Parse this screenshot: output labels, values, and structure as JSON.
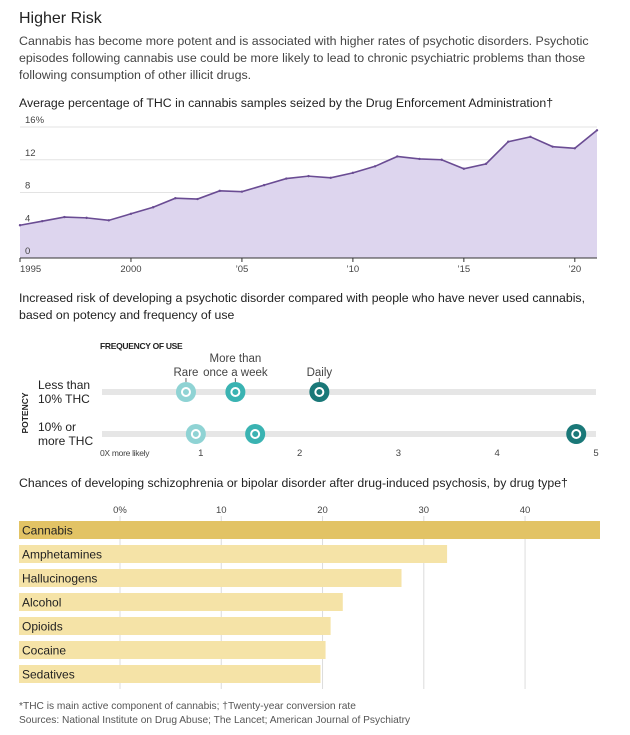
{
  "header": {
    "title": "Higher Risk",
    "subtitle": "Cannabis has become more potent and is associated with higher rates of psychotic disorders. Psychotic episodes following cannabis use could be more likely to lead to chronic psychiatric problems than those following consumption of other illicit drugs."
  },
  "colors": {
    "area_fill": "#ddd5ee",
    "area_line": "#6a4c93",
    "dot_light": "#8fd3d4",
    "dot_mid": "#3ab3b2",
    "dot_dark": "#1a7878",
    "bar_highlight": "#e2c365",
    "bar_default": "#f5e3a7",
    "track": "#e6e6e6"
  },
  "chart_data": [
    {
      "type": "area",
      "title": "Average percentage of THC in cannabis samples seized by the Drug Enforcement Administration†",
      "x": [
        1995,
        1996,
        1997,
        1998,
        1999,
        2000,
        2001,
        2002,
        2003,
        2004,
        2005,
        2006,
        2007,
        2008,
        2009,
        2010,
        2011,
        2012,
        2013,
        2014,
        2015,
        2016,
        2017,
        2018,
        2019,
        2020,
        2021
      ],
      "values": [
        4.0,
        4.5,
        5.0,
        4.9,
        4.6,
        5.4,
        6.2,
        7.3,
        7.2,
        8.2,
        8.1,
        8.9,
        9.7,
        10.0,
        9.8,
        10.4,
        11.2,
        12.4,
        12.1,
        12.0,
        10.9,
        11.5,
        14.2,
        14.8,
        13.6,
        13.4,
        15.6
      ],
      "xlim": [
        1995,
        2021
      ],
      "ylim": [
        0,
        16
      ],
      "y_ticks": [
        0,
        4,
        8,
        12,
        16
      ],
      "y_tick_labels": [
        "0",
        "4",
        "8",
        "12",
        "16%"
      ],
      "x_ticks": [
        1995,
        2000,
        2005,
        2010,
        2015,
        2020
      ],
      "x_tick_labels": [
        "1995",
        "2000",
        "’05",
        "’10",
        "’15",
        "’20"
      ]
    },
    {
      "type": "scatter",
      "title": "Increased risk of developing a psychotic disorder compared with people who have never used cannabis, based on potency and frequency of use",
      "legend_title": "FREQUENCY OF USE",
      "axis_side_label": "POTENCY",
      "xlim": [
        0,
        5
      ],
      "x_ticks": [
        0,
        1,
        2,
        3,
        4,
        5
      ],
      "x_tick_labels": [
        "0X more likely",
        "1",
        "2",
        "3",
        "4",
        "5"
      ],
      "frequency_labels": [
        {
          "lines": [
            "Rare"
          ],
          "x": 0.85
        },
        {
          "lines": [
            "More than",
            "once a week"
          ],
          "x": 1.35
        },
        {
          "lines": [
            "Daily"
          ],
          "x": 2.2
        }
      ],
      "rows": [
        {
          "label": [
            "Less than",
            "10% THC"
          ],
          "points": [
            {
              "frequency": "Rare",
              "x": 0.85,
              "tone": "light"
            },
            {
              "frequency": "More than once a week",
              "x": 1.35,
              "tone": "mid"
            },
            {
              "frequency": "Daily",
              "x": 2.2,
              "tone": "dark"
            }
          ]
        },
        {
          "label": [
            "10% or",
            "more THC"
          ],
          "points": [
            {
              "frequency": "Rare",
              "x": 0.95,
              "tone": "light"
            },
            {
              "frequency": "More than once a week",
              "x": 1.55,
              "tone": "mid"
            },
            {
              "frequency": "Daily",
              "x": 4.8,
              "tone": "dark"
            }
          ]
        }
      ]
    },
    {
      "type": "bar",
      "orientation": "horizontal",
      "title": "Chances of developing schizophrenia or bipolar disorder after drug-induced psychosis, by drug type†",
      "categories": [
        "Cannabis",
        "Amphetamines",
        "Hallucinogens",
        "Alcohol",
        "Opioids",
        "Cocaine",
        "Sedatives"
      ],
      "values": [
        47.4,
        32.3,
        27.8,
        22.0,
        20.8,
        20.3,
        19.8
      ],
      "highlight": "Cannabis",
      "xlim": [
        0,
        47.4
      ],
      "x_ticks": [
        0,
        10,
        20,
        30,
        40
      ],
      "x_tick_labels": [
        "0%",
        "10",
        "20",
        "30",
        "40"
      ]
    }
  ],
  "notes": [
    "*THC is main active component of cannabis; †Twenty-year conversion rate",
    "Sources: National Institute on Drug Abuse; The Lancet; American Journal of Psychiatry"
  ]
}
